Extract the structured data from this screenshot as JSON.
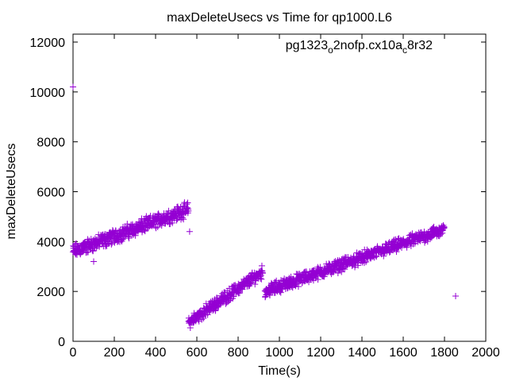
{
  "chart_data": {
    "type": "scatter",
    "title": "maxDeleteUsecs vs Time for qp1000.L6",
    "xlabel": "Time(s)",
    "ylabel": "maxDeleteUsecs",
    "xlim": [
      0,
      2000
    ],
    "ylim": [
      0,
      12000
    ],
    "xticks": [
      "0",
      "200",
      "400",
      "600",
      "800",
      "1000",
      "1200",
      "1400",
      "1600",
      "1800",
      "2000"
    ],
    "yticks": [
      "0",
      "2000",
      "4000",
      "6000",
      "8000",
      "10000",
      "12000"
    ],
    "grid": false,
    "legend_position": "top-right",
    "series": [
      {
        "name": "pg1323_o2nofp.cx10a_c8r32",
        "legend_parts": [
          "pg1323",
          "o",
          "2nofp.cx10a",
          "c",
          "8r32"
        ],
        "color": "#9400d3",
        "marker": "+",
        "trend_segments": [
          {
            "t_start": 0,
            "t_end": 560,
            "v_start": 3600,
            "v_end": 5300,
            "spread": 350
          },
          {
            "t_start": 560,
            "t_end": 920,
            "v_start": 750,
            "v_end": 2800,
            "spread": 300
          },
          {
            "t_start": 930,
            "t_end": 1800,
            "v_start": 2000,
            "v_end": 4500,
            "spread": 300
          }
        ],
        "outliers": [
          [
            0,
            10200
          ],
          [
            565,
            4400
          ],
          [
            100,
            3200
          ]
        ]
      }
    ]
  }
}
